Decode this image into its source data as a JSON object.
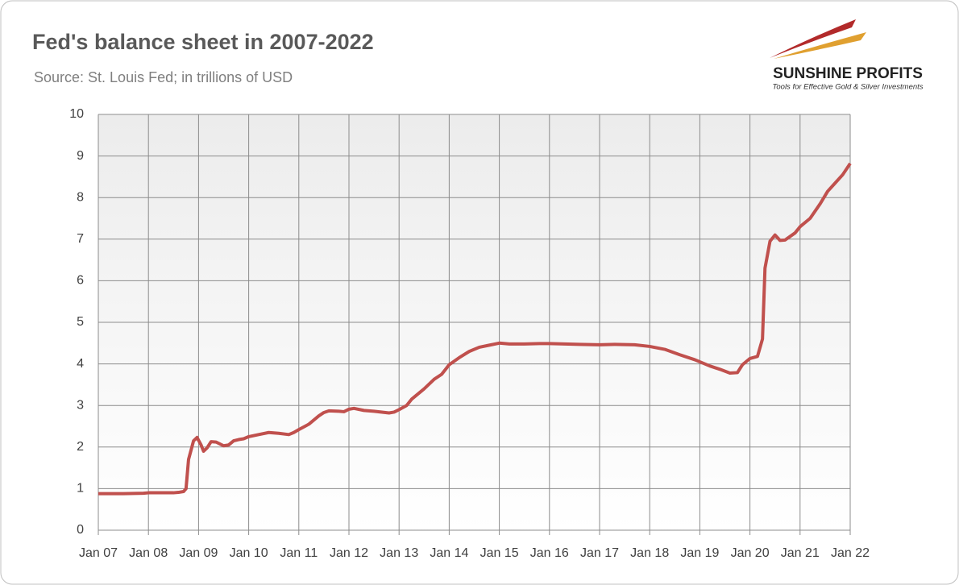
{
  "chart_data": {
    "type": "line",
    "title": "Fed's balance sheet in 2007-2022",
    "subtitle": "Source: St. Louis Fed; in trillions of USD",
    "logo": {
      "name": "SUNSHINE PROFITS",
      "tagline": "Tools for Effective Gold & Silver Investments"
    },
    "xlim": [
      2007,
      2022
    ],
    "xticks": [
      {
        "value": 2007,
        "label": "Jan 07"
      },
      {
        "value": 2008,
        "label": "Jan 08"
      },
      {
        "value": 2009,
        "label": "Jan 09"
      },
      {
        "value": 2010,
        "label": "Jan 10"
      },
      {
        "value": 2011,
        "label": "Jan 11"
      },
      {
        "value": 2012,
        "label": "Jan 12"
      },
      {
        "value": 2013,
        "label": "Jan 13"
      },
      {
        "value": 2014,
        "label": "Jan 14"
      },
      {
        "value": 2015,
        "label": "Jan 15"
      },
      {
        "value": 2016,
        "label": "Jan 16"
      },
      {
        "value": 2017,
        "label": "Jan 17"
      },
      {
        "value": 2018,
        "label": "Jan 18"
      },
      {
        "value": 2019,
        "label": "Jan 19"
      },
      {
        "value": 2020,
        "label": "Jan 20"
      },
      {
        "value": 2021,
        "label": "Jan 21"
      },
      {
        "value": 2022,
        "label": "Jan 22"
      }
    ],
    "ylim": [
      0,
      10
    ],
    "yticks": [
      0,
      1,
      2,
      3,
      4,
      5,
      6,
      7,
      8,
      9,
      10
    ],
    "grid": true,
    "x": [
      2007.0,
      2007.5,
      2007.9,
      2008.0,
      2008.5,
      2008.6,
      2008.7,
      2008.75,
      2008.8,
      2008.9,
      2008.97,
      2009.05,
      2009.1,
      2009.17,
      2009.25,
      2009.35,
      2009.5,
      2009.6,
      2009.7,
      2009.8,
      2009.9,
      2010.0,
      2010.2,
      2010.4,
      2010.6,
      2010.8,
      2010.9,
      2011.0,
      2011.2,
      2011.4,
      2011.5,
      2011.6,
      2011.8,
      2011.9,
      2012.0,
      2012.1,
      2012.3,
      2012.5,
      2012.8,
      2012.9,
      2013.0,
      2013.15,
      2013.25,
      2013.5,
      2013.7,
      2013.85,
      2014.0,
      2014.2,
      2014.4,
      2014.6,
      2014.8,
      2015.0,
      2015.2,
      2015.5,
      2015.8,
      2016.0,
      2016.3,
      2016.6,
      2017.0,
      2017.3,
      2017.7,
      2018.0,
      2018.3,
      2018.6,
      2018.9,
      2019.2,
      2019.4,
      2019.6,
      2019.75,
      2019.85,
      2020.0,
      2020.15,
      2020.25,
      2020.3,
      2020.4,
      2020.5,
      2020.6,
      2020.7,
      2020.9,
      2021.0,
      2021.2,
      2021.4,
      2021.55,
      2021.7,
      2021.85,
      2022.0
    ],
    "series": [
      {
        "name": "Fed's balance sheet",
        "color": "#c0504d",
        "values": [
          0.88,
          0.88,
          0.89,
          0.9,
          0.9,
          0.91,
          0.93,
          1.0,
          1.7,
          2.15,
          2.23,
          2.05,
          1.9,
          1.98,
          2.13,
          2.12,
          2.03,
          2.05,
          2.15,
          2.18,
          2.2,
          2.25,
          2.3,
          2.35,
          2.33,
          2.3,
          2.35,
          2.42,
          2.55,
          2.75,
          2.83,
          2.87,
          2.86,
          2.85,
          2.91,
          2.93,
          2.88,
          2.86,
          2.82,
          2.84,
          2.9,
          3.0,
          3.15,
          3.4,
          3.63,
          3.75,
          3.98,
          4.15,
          4.3,
          4.4,
          4.45,
          4.5,
          4.48,
          4.48,
          4.49,
          4.49,
          4.48,
          4.47,
          4.46,
          4.47,
          4.46,
          4.42,
          4.35,
          4.22,
          4.1,
          3.95,
          3.87,
          3.78,
          3.79,
          3.98,
          4.13,
          4.18,
          4.6,
          6.3,
          6.95,
          7.1,
          6.97,
          6.98,
          7.15,
          7.3,
          7.5,
          7.85,
          8.15,
          8.35,
          8.55,
          8.82
        ]
      }
    ]
  }
}
